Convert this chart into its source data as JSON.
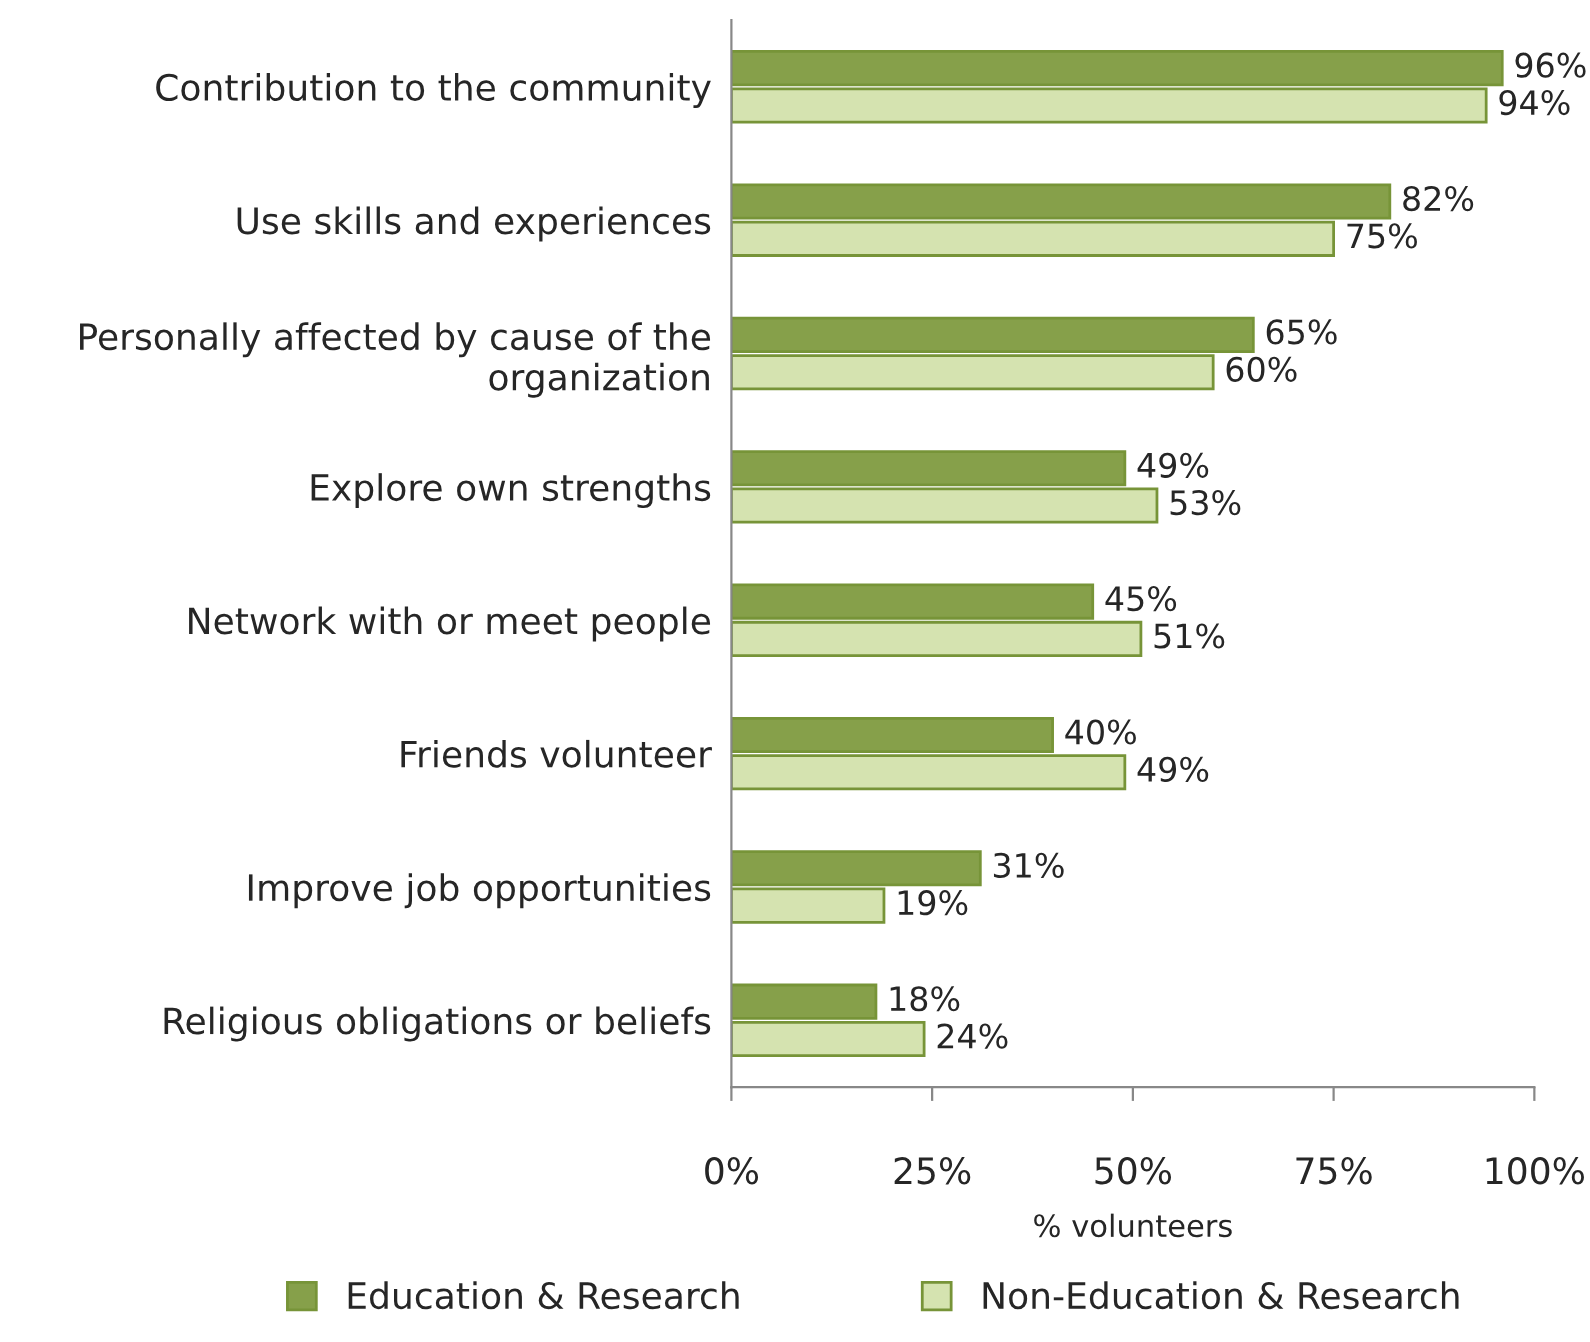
{
  "chart_data": {
    "type": "bar",
    "orientation": "horizontal",
    "xlabel": "% volunteers",
    "categories": [
      "Contribution to the community",
      "Use skills and experiences",
      "Personally affected by cause of the\norganization",
      "Explore own strengths",
      "Network with or meet people",
      "Friends volunteer",
      "Improve job opportunities",
      "Religious obligations or beliefs"
    ],
    "series": [
      {
        "name": "Education & Research",
        "color": "#86a04a",
        "values": [
          96,
          82,
          65,
          49,
          45,
          40,
          31,
          18
        ],
        "value_labels": [
          "96%",
          "82%",
          "65%",
          "49%",
          "45%",
          "40%",
          "31%",
          "18%"
        ]
      },
      {
        "name": "Non-Education & Research",
        "color": "#d5e3b0",
        "values": [
          94,
          75,
          60,
          53,
          51,
          49,
          19,
          24
        ],
        "value_labels": [
          "94%",
          "75%",
          "60%",
          "53%",
          "51%",
          "49%",
          "19%",
          "24%"
        ]
      }
    ],
    "xlim": [
      0,
      100
    ],
    "xticks": [
      {
        "value": 0,
        "label": "0%"
      },
      {
        "value": 25,
        "label": "25%"
      },
      {
        "value": 50,
        "label": "50%"
      },
      {
        "value": 75,
        "label": "75%"
      },
      {
        "value": 100,
        "label": "100%"
      }
    ],
    "legend": "bottom",
    "grid": false
  }
}
